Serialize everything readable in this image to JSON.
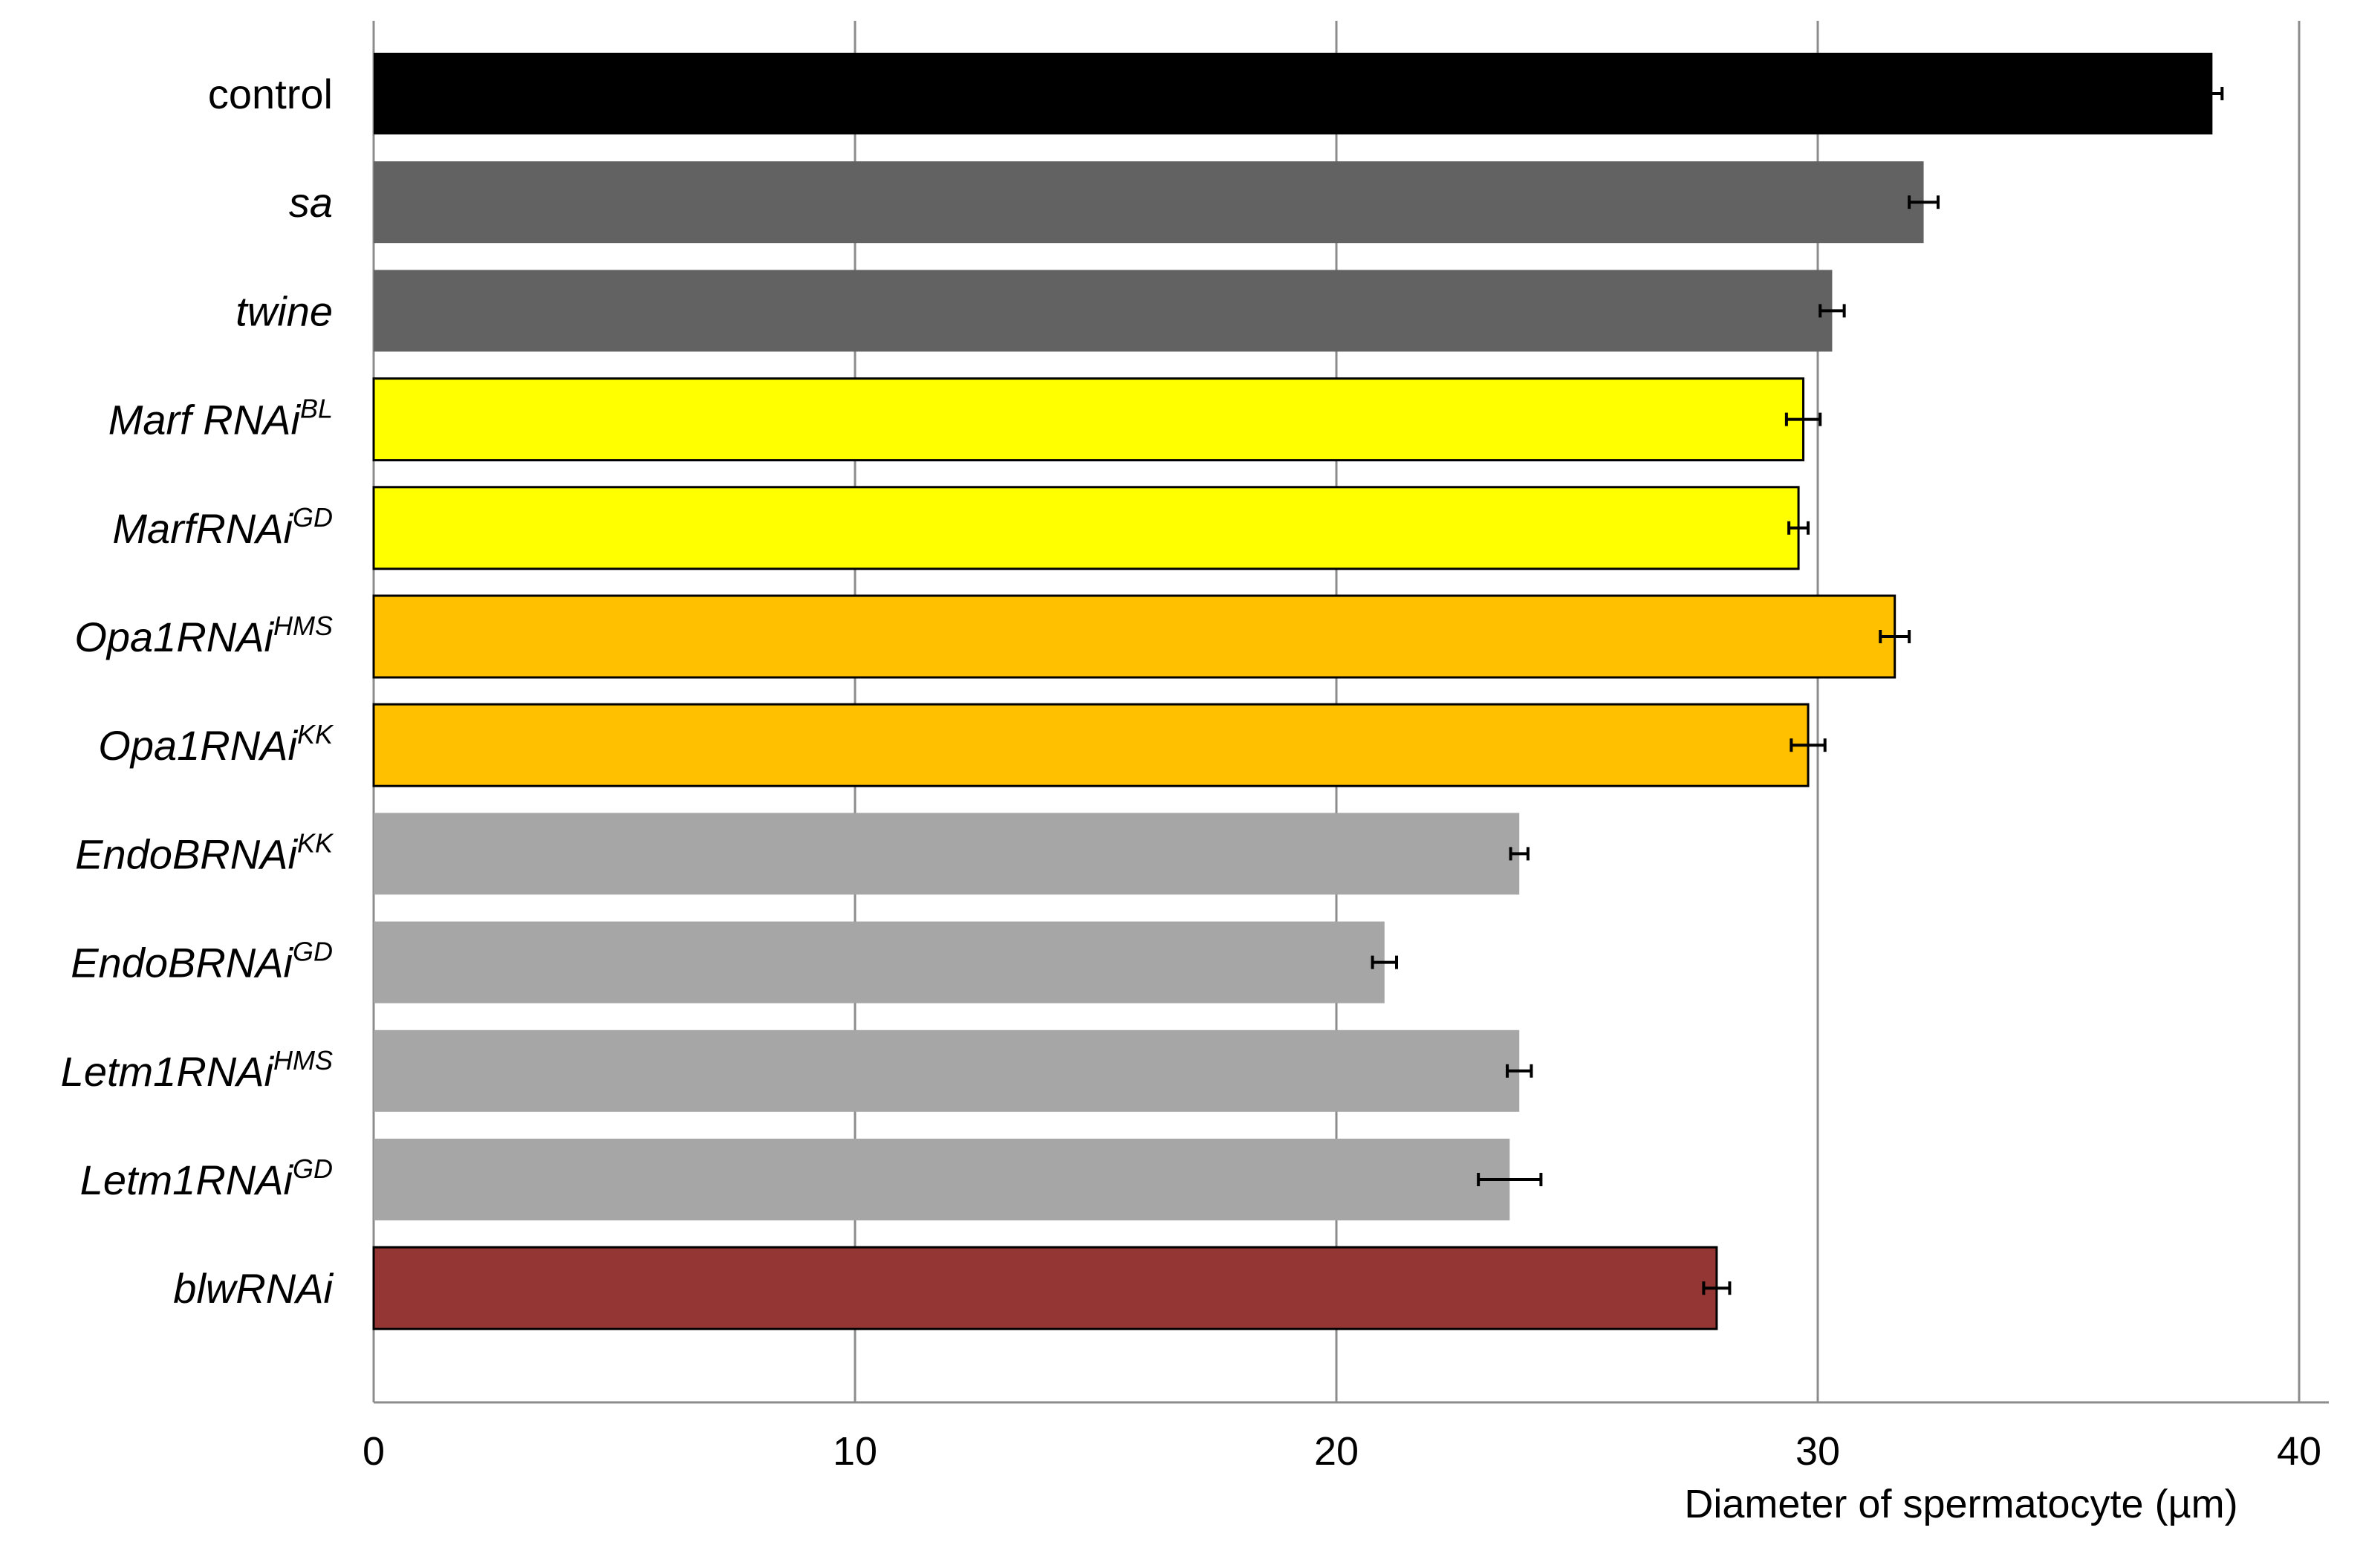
{
  "chart_data": {
    "type": "bar",
    "orientation": "horizontal",
    "title": "",
    "xlabel": "Diameter of spermatocyte (µm)",
    "ylabel": "",
    "xlim": [
      0,
      40
    ],
    "x_ticks": [
      "0",
      "10",
      "20",
      "30",
      "40"
    ],
    "grid": "vertical",
    "error_bars": true,
    "categories": [
      {
        "name": "control",
        "sup": "",
        "italic": false
      },
      {
        "name": "sa",
        "sup": "",
        "italic": true
      },
      {
        "name": "twine",
        "sup": "",
        "italic": true
      },
      {
        "name": "Marf RNAi",
        "sup": "BL",
        "italic": true
      },
      {
        "name": "MarfRNAi",
        "sup": "GD",
        "italic": true
      },
      {
        "name": "Opa1RNAi",
        "sup": "HMS",
        "italic": true
      },
      {
        "name": "Opa1RNAi",
        "sup": "KK",
        "italic": true
      },
      {
        "name": "EndoBRNAi",
        "sup": "KK",
        "italic": true
      },
      {
        "name": "EndoBRNAi",
        "sup": "GD",
        "italic": true
      },
      {
        "name": "Letm1RNAi",
        "sup": "HMS",
        "italic": true
      },
      {
        "name": "Letm1RNAi",
        "sup": "GD",
        "italic": true
      },
      {
        "name": "blwRNAi",
        "sup": "",
        "italic": true
      }
    ],
    "values": [
      38.2,
      32.2,
      30.3,
      29.7,
      29.6,
      31.6,
      29.8,
      23.8,
      21.0,
      23.8,
      23.6,
      27.9
    ],
    "errors": [
      0.2,
      0.3,
      0.25,
      0.35,
      0.2,
      0.3,
      0.35,
      0.18,
      0.25,
      0.25,
      0.65,
      0.27
    ],
    "colors": [
      "#000000",
      "#626262",
      "#626262",
      "#ffff00",
      "#ffff00",
      "#ffc000",
      "#ffc000",
      "#a6a6a6",
      "#a6a6a6",
      "#a6a6a6",
      "#a6a6a6",
      "#943634"
    ],
    "outlined": [
      false,
      false,
      false,
      true,
      true,
      true,
      true,
      false,
      false,
      false,
      false,
      true
    ]
  }
}
